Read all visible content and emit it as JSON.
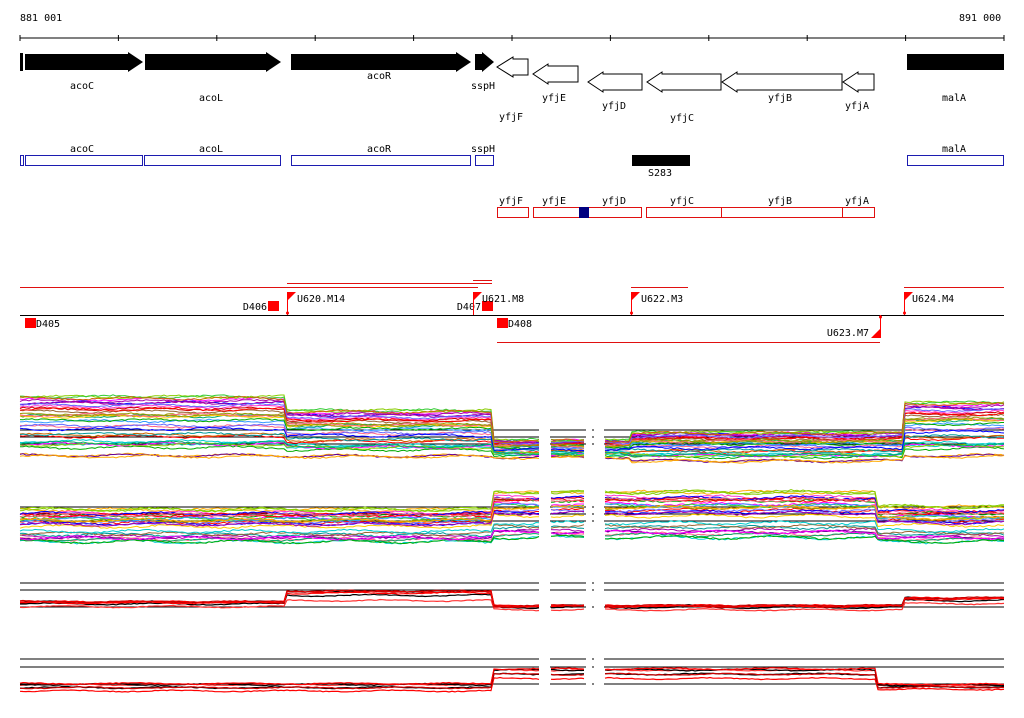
{
  "coordinates": {
    "start": "881 001",
    "end": "891 000"
  },
  "genes": [
    {
      "label": "acoC",
      "strand": "+",
      "filled": true
    },
    {
      "label": "acoL",
      "strand": "+",
      "filled": true
    },
    {
      "label": "acoR",
      "strand": "+",
      "filled": true
    },
    {
      "label": "sspH",
      "strand": "+",
      "filled": true
    },
    {
      "label": "yfjF",
      "strand": "-",
      "filled": false
    },
    {
      "label": "yfjE",
      "strand": "-",
      "filled": false
    },
    {
      "label": "yfjD",
      "strand": "-",
      "filled": false
    },
    {
      "label": "yfjC",
      "strand": "-",
      "filled": false
    },
    {
      "label": "yfjB",
      "strand": "-",
      "filled": false
    },
    {
      "label": "yfjA",
      "strand": "-",
      "filled": false
    },
    {
      "label": "malA",
      "strand": "+",
      "filled": true
    }
  ],
  "blue_track": [
    "acoC",
    "acoL",
    "acoR",
    "sspH",
    "malA"
  ],
  "feature_s": "S283",
  "red_track": [
    "yfjF",
    "yfjE",
    "yfjD",
    "yfjC",
    "yfjB",
    "yfjA"
  ],
  "markers": {
    "deletions": [
      "D405",
      "D406",
      "D407",
      "D408"
    ],
    "units": [
      "U620.M14",
      "U621.M8",
      "U622.M3",
      "U623.M7",
      "U624.M4"
    ]
  },
  "colors": {
    "gene_fill": "#000000",
    "blue_track": "#1c1cb0",
    "red_track": "#e01010",
    "highlight": "#000080",
    "marker": "#ff0000"
  }
}
